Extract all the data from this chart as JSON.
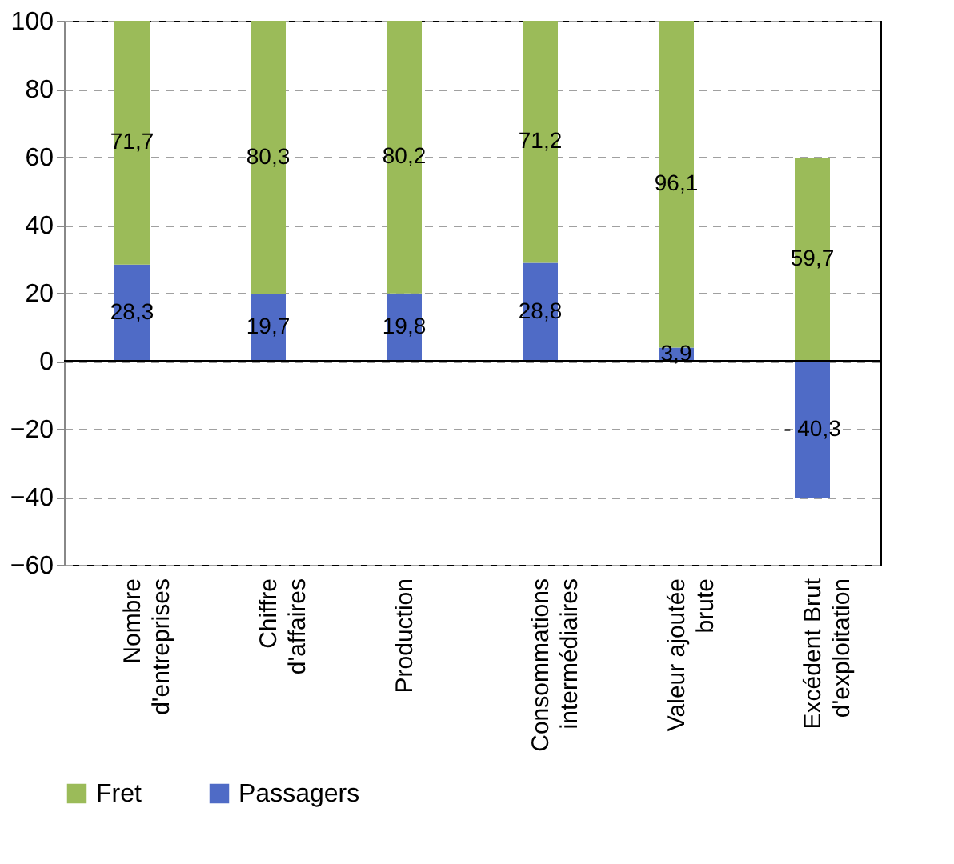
{
  "chart_data": {
    "type": "bar",
    "stacked": true,
    "categories": [
      "Nombre d'entreprises",
      "Chiffre d'affaires",
      "Production",
      "Consommations intermédiaires",
      "Valeur ajoutée brute",
      "Excédent Brut d'exploitation"
    ],
    "series": [
      {
        "name": "Passagers",
        "color": "#4f6bc6",
        "values": [
          28.3,
          19.7,
          19.8,
          28.8,
          3.9,
          -40.3
        ],
        "value_labels": [
          "28,3",
          "19,7",
          "19,8",
          "28,8",
          "3,9",
          "- 40,3"
        ]
      },
      {
        "name": "Fret",
        "color": "#9bbb59",
        "values": [
          71.7,
          80.3,
          80.2,
          71.2,
          96.1,
          59.7
        ],
        "value_labels": [
          "71,7",
          "80,3",
          "80,2",
          "71,2",
          "96,1",
          "59,7"
        ]
      }
    ],
    "ylim": [
      -60,
      100
    ],
    "yticks": [
      -60,
      -40,
      -20,
      0,
      20,
      40,
      60,
      80,
      100
    ],
    "grid": "y",
    "legend": "bottom"
  }
}
